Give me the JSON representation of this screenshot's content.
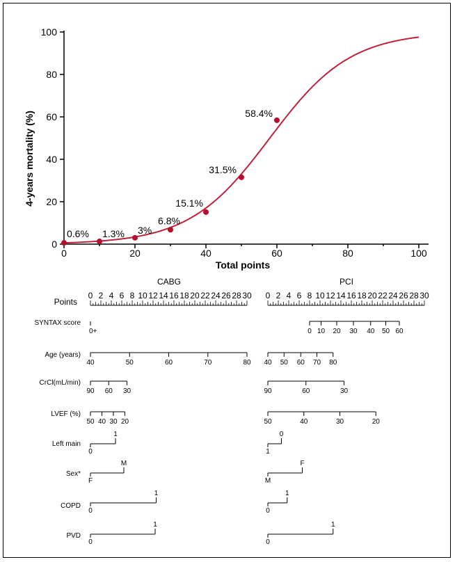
{
  "chart_data": [
    {
      "type": "line",
      "xlabel": "Total points",
      "ylabel": "4-years mortality (%)",
      "xlim": [
        0,
        100
      ],
      "ylim": [
        0,
        100
      ],
      "x_ticks": [
        0,
        20,
        40,
        60,
        80,
        100
      ],
      "y_ticks": [
        0,
        20,
        40,
        60,
        80,
        100
      ],
      "line_color": "#c0213a",
      "point_color": "#b5102b",
      "points": [
        {
          "x": 0,
          "y": 0.6,
          "label": "0.6%"
        },
        {
          "x": 10,
          "y": 1.3,
          "label": "1.3%"
        },
        {
          "x": 20,
          "y": 3,
          "label": "3%"
        },
        {
          "x": 30,
          "y": 6.8,
          "label": "6.8%"
        },
        {
          "x": 40,
          "y": 15.1,
          "label": "15.1%"
        },
        {
          "x": 50,
          "y": 31.5,
          "label": "31.5%"
        },
        {
          "x": 60,
          "y": 58.4,
          "label": "58.4%"
        }
      ]
    },
    {
      "type": "table",
      "subtype": "nomogram",
      "panels": [
        {
          "title": "CABG",
          "points_labels": [
            "0",
            "2",
            "4",
            "6",
            "8",
            "10",
            "12",
            "14",
            "16",
            "18",
            "20",
            "22",
            "24",
            "26",
            "28",
            "30"
          ],
          "rows": [
            {
              "name": "Points"
            },
            {
              "name": "SYNTAX score",
              "ticks": [
                {
                  "v": 0,
                  "label": "0+"
                }
              ],
              "labels_below": true
            },
            {
              "name": "Age (years)",
              "ticks": [
                {
                  "v": 0,
                  "label": "40"
                },
                {
                  "v": 7.5,
                  "label": "50"
                },
                {
                  "v": 15,
                  "label": "60"
                },
                {
                  "v": 22.5,
                  "label": "70"
                },
                {
                  "v": 30,
                  "label": "80"
                }
              ],
              "labels_below": true
            },
            {
              "name": "CrCl(mL/min)",
              "ticks": [
                {
                  "v": 0,
                  "label": "90"
                },
                {
                  "v": 3.5,
                  "label": "60"
                },
                {
                  "v": 7,
                  "label": "30"
                }
              ],
              "labels_below": true
            },
            {
              "name": "LVEF (%)",
              "ticks": [
                {
                  "v": 0,
                  "label": "50"
                },
                {
                  "v": 2.2,
                  "label": "40"
                },
                {
                  "v": 4.4,
                  "label": "30"
                },
                {
                  "v": 6.6,
                  "label": "20"
                }
              ],
              "labels_below": true
            },
            {
              "name": "Left main",
              "step": {
                "from": 0,
                "to": 4.8,
                "label_from": "0",
                "label_to": "1"
              }
            },
            {
              "name": "Sex*",
              "step": {
                "from": 0,
                "to": 6.4,
                "label_from": "F",
                "label_to": "M"
              }
            },
            {
              "name": "COPD",
              "step": {
                "from": 0,
                "to": 12.6,
                "label_from": "0",
                "label_to": "1"
              }
            },
            {
              "name": "PVD",
              "step": {
                "from": 0,
                "to": 12.4,
                "label_from": "0",
                "label_to": "1"
              }
            }
          ]
        },
        {
          "title": "PCI",
          "points_labels": [
            "0",
            "2",
            "4",
            "6",
            "8",
            "10",
            "12",
            "14",
            "16",
            "18",
            "20",
            "22",
            "24",
            "26",
            "28",
            "30"
          ],
          "rows": [
            {
              "name": "Points"
            },
            {
              "name": "SYNTAX score",
              "ticks": [
                {
                  "v": 8,
                  "label": "0"
                },
                {
                  "v": 10.2,
                  "label": "10"
                },
                {
                  "v": 13.2,
                  "label": "20"
                },
                {
                  "v": 16.4,
                  "label": "30"
                },
                {
                  "v": 19.7,
                  "label": "40"
                },
                {
                  "v": 22.6,
                  "label": "50"
                },
                {
                  "v": 25.2,
                  "label": "60"
                }
              ],
              "labels_below": true
            },
            {
              "name": "Age (years)",
              "ticks": [
                {
                  "v": 0,
                  "label": "40"
                },
                {
                  "v": 3.1,
                  "label": "50"
                },
                {
                  "v": 6.3,
                  "label": "60"
                },
                {
                  "v": 9.4,
                  "label": "70"
                },
                {
                  "v": 12.5,
                  "label": "80"
                }
              ],
              "labels_below": true
            },
            {
              "name": "CrCl(mL/min)",
              "ticks": [
                {
                  "v": 0,
                  "label": "90"
                },
                {
                  "v": 7.3,
                  "label": "60"
                },
                {
                  "v": 14.6,
                  "label": "30"
                }
              ],
              "labels_below": true
            },
            {
              "name": "LVEF (%)",
              "ticks": [
                {
                  "v": 0,
                  "label": "50"
                },
                {
                  "v": 6.9,
                  "label": "40"
                },
                {
                  "v": 13.8,
                  "label": "30"
                },
                {
                  "v": 20.7,
                  "label": "20"
                }
              ],
              "labels_below": true
            },
            {
              "name": "Left main",
              "step": {
                "from": 0,
                "to": 2.6,
                "label_from": "1",
                "label_to": "0"
              }
            },
            {
              "name": "Sex*",
              "step": {
                "from": 0,
                "to": 6.6,
                "label_from": "M",
                "label_to": "F"
              }
            },
            {
              "name": "COPD",
              "step": {
                "from": 0,
                "to": 3.7,
                "label_from": "0",
                "label_to": "1"
              }
            },
            {
              "name": "PVD",
              "step": {
                "from": 0,
                "to": 12.5,
                "label_from": "0",
                "label_to": "1"
              }
            }
          ]
        }
      ]
    }
  ]
}
